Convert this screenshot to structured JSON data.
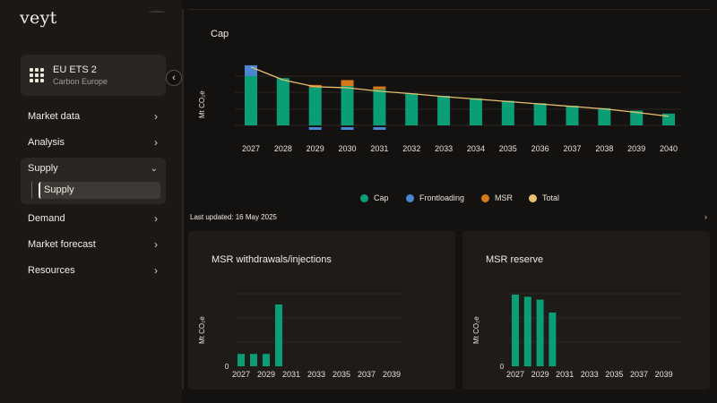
{
  "brand": {
    "logo": "veyt"
  },
  "product": {
    "title": "EU ETS 2",
    "subtitle": "Carbon Europe"
  },
  "nav": {
    "items": [
      {
        "label": "Market data"
      },
      {
        "label": "Analysis"
      },
      {
        "label": "Supply"
      },
      {
        "label": "Demand"
      },
      {
        "label": "Market forecast"
      },
      {
        "label": "Resources"
      }
    ],
    "supply_sub": "Supply"
  },
  "colors": {
    "cap": "#0a9e76",
    "frontloading": "#4a86d4",
    "msr": "#d7791b",
    "total": "#e8c070"
  },
  "cap_panel": {
    "title": "Cap",
    "ylabel": "Mt CO₂e",
    "legend": [
      "Cap",
      "Frontloading",
      "MSR",
      "Total"
    ]
  },
  "last_updated": "Last updated: 16 May 2025",
  "msr_panel": {
    "title": "MSR withdrawals/injections",
    "ylabel": "Mt CO₂e",
    "zero_label": "0"
  },
  "reserve_panel": {
    "title": "MSR reserve",
    "ylabel": "Mt CO₂e",
    "zero_label": "0"
  },
  "chart_data": [
    {
      "type": "bar",
      "title": "Cap",
      "ylabel": "Mt CO₂e",
      "categories": [
        "2027",
        "2028",
        "2029",
        "2030",
        "2031",
        "2032",
        "2033",
        "2034",
        "2035",
        "2036",
        "2037",
        "2038",
        "2039",
        "2040"
      ],
      "series": [
        {
          "name": "Cap",
          "values": [
            1.0,
            0.96,
            0.77,
            0.8,
            0.73,
            0.65,
            0.6,
            0.55,
            0.5,
            0.45,
            0.4,
            0.35,
            0.3,
            0.24
          ]
        },
        {
          "name": "Frontloading",
          "values": [
            0.22,
            0,
            0,
            0,
            0,
            0,
            0,
            0,
            0,
            0,
            0,
            0,
            0,
            0
          ]
        },
        {
          "name": "MSR",
          "values": [
            0,
            0,
            0.05,
            0.12,
            0.06,
            0,
            0,
            0,
            0,
            0,
            0,
            0,
            0,
            0
          ]
        },
        {
          "name": "Total",
          "values": [
            1.22,
            0.96,
            0.82,
            0.8,
            0.73,
            0.68,
            0.62,
            0.57,
            0.52,
            0.47,
            0.42,
            0.37,
            0.3,
            0.22
          ]
        }
      ],
      "negatives": {
        "MSR": [
          0,
          0,
          -0.08,
          -0.08,
          -0.08,
          0,
          0,
          0,
          0,
          0,
          0,
          0,
          0,
          0
        ]
      }
    },
    {
      "type": "bar",
      "title": "MSR withdrawals/injections",
      "ylabel": "Mt CO₂e",
      "categories": [
        "2027",
        "2028",
        "2029",
        "2030",
        "2031",
        "2032",
        "2033",
        "2034",
        "2035",
        "2036",
        "2037",
        "2038",
        "2039"
      ],
      "tick_labels": [
        "2027",
        "2029",
        "2031",
        "2033",
        "2035",
        "2037",
        "2039"
      ],
      "values": [
        0.2,
        0.2,
        0.2,
        1.0,
        0,
        0,
        0,
        0,
        0,
        0,
        0,
        0,
        0
      ]
    },
    {
      "type": "bar",
      "title": "MSR reserve",
      "ylabel": "Mt CO₂e",
      "categories": [
        "2027",
        "2028",
        "2029",
        "2030",
        "2031",
        "2032",
        "2033",
        "2034",
        "2035",
        "2036",
        "2037",
        "2038",
        "2039"
      ],
      "tick_labels": [
        "2027",
        "2029",
        "2031",
        "2033",
        "2035",
        "2037",
        "2039"
      ],
      "values": [
        1.0,
        0.97,
        0.93,
        0.75,
        0,
        0,
        0,
        0,
        0,
        0,
        0,
        0,
        0
      ]
    }
  ]
}
